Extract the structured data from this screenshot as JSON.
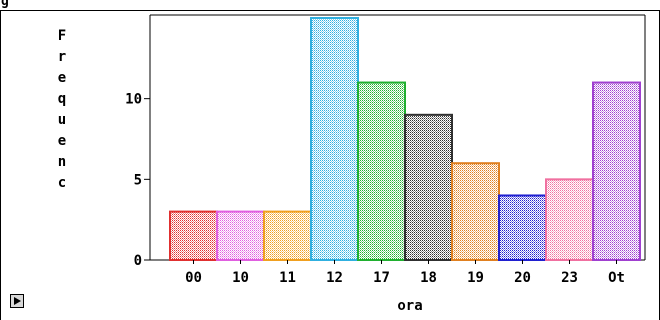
{
  "window": {
    "title_glyph": "g"
  },
  "chart_data": {
    "type": "bar",
    "xlabel": "ora",
    "ylabel": "Frequenc",
    "ylim": [
      0,
      15
    ],
    "yticks": [
      0,
      5,
      10
    ],
    "categories": [
      "00",
      "10",
      "11",
      "12",
      "17",
      "18",
      "19",
      "20",
      "23",
      "Ot"
    ],
    "values": [
      3,
      3,
      3,
      15,
      11,
      9,
      6,
      4,
      5,
      11
    ],
    "colors": [
      "#e03030",
      "#e060e0",
      "#f0a020",
      "#30b0e0",
      "#20b030",
      "#303030",
      "#e08020",
      "#2020d0",
      "#f070a0",
      "#a040d0"
    ],
    "fill_style": "dotted",
    "grid": false,
    "legend": "none"
  },
  "controls": {
    "expand_icon": "triangle-right-icon"
  }
}
